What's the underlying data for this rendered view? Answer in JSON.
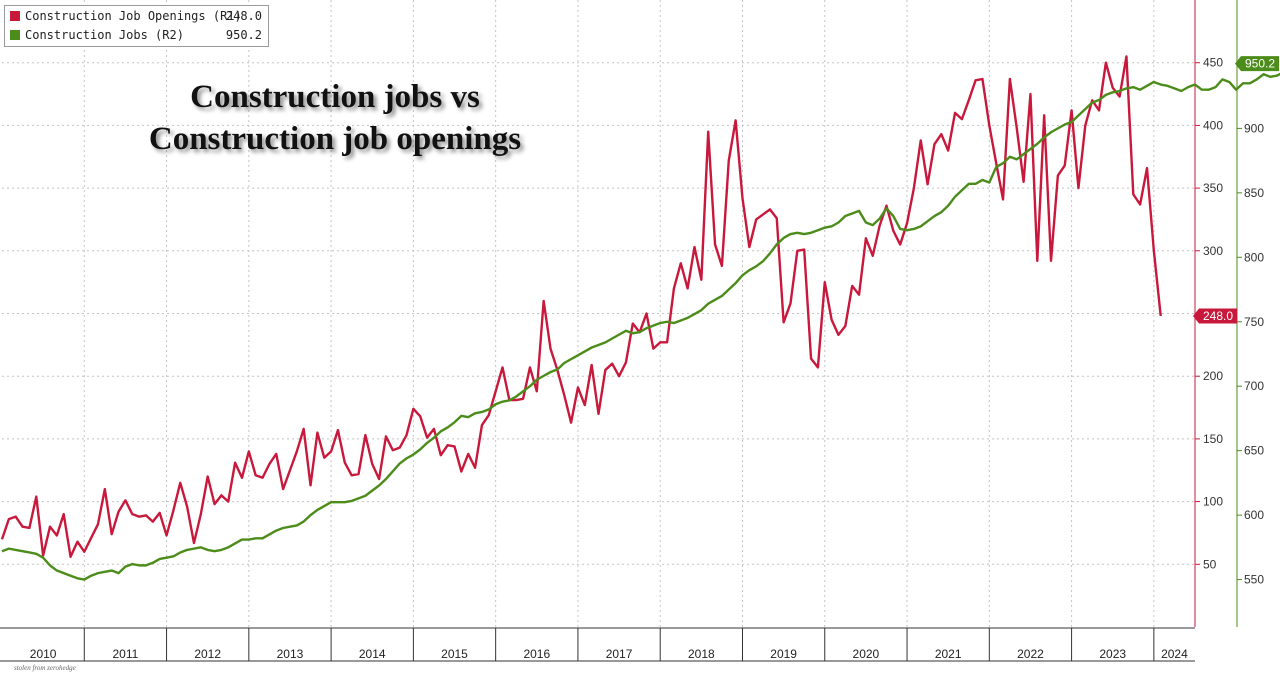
{
  "legend": {
    "items": [
      {
        "name": "Construction Job Openings (R1)",
        "value": "248.0",
        "color": "#c8193c"
      },
      {
        "name": "Construction Jobs (R2)",
        "value": "950.2",
        "color": "#4c8c1a"
      }
    ]
  },
  "title_lines": [
    "Construction jobs vs",
    "Construction job openings"
  ],
  "credit": "stolen from zerohedge",
  "chart_data": {
    "type": "line",
    "title": "Construction jobs vs Construction job openings",
    "x_ticks": [
      "2010",
      "2011",
      "2012",
      "2013",
      "2014",
      "2015",
      "2016",
      "2017",
      "2018",
      "2019",
      "2020",
      "2021",
      "2022",
      "2023",
      "2024"
    ],
    "xlim": [
      "2010-01",
      "2024-07"
    ],
    "axes": {
      "R1": {
        "ylim": [
          0,
          500
        ],
        "ticks": [
          50,
          100,
          150,
          200,
          250,
          300,
          350,
          400,
          450
        ],
        "color": "#c8193c"
      },
      "R2": {
        "ylim": [
          513.2,
          999.6
        ],
        "ticks": [
          550,
          600,
          650,
          700,
          750,
          800,
          850,
          900,
          950
        ],
        "color": "#4c8c1a"
      }
    },
    "grid": true,
    "legend": "top-left",
    "last_value_tags": [
      {
        "series": "Construction Job Openings (R1)",
        "label": "248.0",
        "color": "#c8193c"
      },
      {
        "series": "Construction Jobs (R2)",
        "label": "950.2",
        "color": "#4c8c1a"
      }
    ],
    "series": [
      {
        "name": "Construction Job Openings (R1)",
        "axis": "R1",
        "color": "#c8193c",
        "start": "2010-01",
        "values": [
          70,
          86,
          88,
          80,
          79,
          104,
          57,
          80,
          73,
          90,
          56,
          68,
          60,
          71,
          82,
          110,
          74,
          92,
          101,
          90,
          88,
          89,
          84,
          91,
          73,
          93,
          115,
          96,
          67,
          90,
          120,
          98,
          105,
          100,
          131,
          119,
          140,
          121,
          119,
          130,
          138,
          110,
          125,
          140,
          158,
          113,
          155,
          135,
          140,
          157,
          131,
          121,
          122,
          153,
          130,
          118,
          152,
          141,
          143,
          153,
          174,
          168,
          151,
          158,
          137,
          145,
          144,
          124,
          138,
          127,
          161,
          169,
          188,
          207,
          181,
          181,
          182,
          207,
          188,
          260,
          222,
          205,
          185,
          163,
          191,
          177,
          209,
          170,
          205,
          210,
          200,
          211,
          242,
          235,
          250,
          222,
          227,
          227,
          270,
          290,
          270,
          303,
          277,
          395,
          305,
          288,
          372,
          404,
          342,
          303,
          325,
          329,
          333,
          326,
          243,
          258,
          300,
          301,
          214,
          207,
          275,
          245,
          233,
          240,
          272,
          265,
          310,
          296,
          320,
          336,
          316,
          305,
          322,
          350,
          388,
          353,
          385,
          393,
          380,
          410,
          405,
          420,
          436,
          437,
          400,
          370,
          341,
          437,
          398,
          355,
          425,
          292,
          408,
          292,
          360,
          368,
          412,
          350,
          400,
          420,
          412,
          450,
          430,
          423,
          455,
          345,
          337,
          366,
          300,
          248
        ]
      },
      {
        "name": "Construction Jobs (R2)",
        "axis": "R2",
        "color": "#4c8c1a",
        "start": "2010-01",
        "values": [
          572,
          574,
          573,
          572,
          571,
          570,
          567,
          561,
          557,
          555,
          553,
          551,
          550,
          553,
          555,
          556,
          557,
          555,
          560,
          562,
          561,
          561,
          563,
          566,
          567,
          568,
          571,
          573,
          574,
          575,
          573,
          572,
          573,
          575,
          578,
          581,
          581,
          582,
          582,
          585,
          588,
          590,
          591,
          592,
          595,
          600,
          604,
          607,
          610,
          610,
          610,
          611,
          613,
          615,
          619,
          623,
          628,
          634,
          640,
          644,
          647,
          651,
          656,
          660,
          665,
          668,
          672,
          677,
          676,
          679,
          680,
          682,
          686,
          688,
          689,
          692,
          696,
          700,
          705,
          708,
          711,
          713,
          718,
          721,
          724,
          727,
          730,
          732,
          734,
          737,
          740,
          743,
          741,
          742,
          745,
          747,
          749,
          750,
          749,
          751,
          753,
          756,
          759,
          764,
          767,
          770,
          775,
          780,
          786,
          790,
          793,
          797,
          803,
          810,
          815,
          818,
          819,
          818,
          819,
          821,
          823,
          824,
          827,
          832,
          834,
          836,
          827,
          825,
          830,
          838,
          832,
          822,
          821,
          822,
          824,
          828,
          832,
          835,
          840,
          847,
          852,
          857,
          857,
          860,
          858,
          870,
          873,
          878,
          876,
          880,
          884,
          888,
          893,
          897,
          900,
          903,
          905,
          910,
          915,
          920,
          922,
          926,
          928,
          929,
          931,
          932,
          930,
          933,
          936,
          934,
          933,
          931,
          929,
          932,
          934,
          930,
          930,
          932,
          938,
          936,
          930,
          935,
          935,
          938,
          942,
          940,
          941,
          944,
          948,
          950,
          949.5,
          950.2
        ]
      }
    ]
  }
}
